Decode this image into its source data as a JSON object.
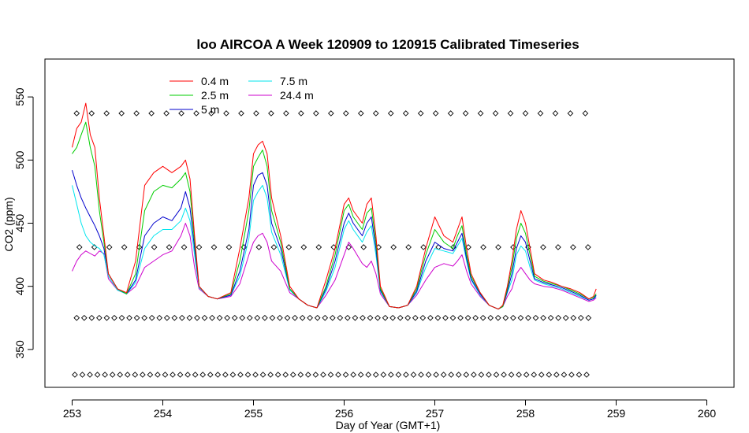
{
  "chart_data": {
    "type": "line",
    "title": "loo AIRCOA A  Week 120909 to 120915  Calibrated Timeseries",
    "xlabel": "Day of Year (GMT+1)",
    "ylabel": "CO2 (ppm)",
    "xlim": [
      252.7,
      260.3
    ],
    "ylim": [
      320,
      580
    ],
    "xticks": [
      253,
      254,
      255,
      256,
      257,
      258,
      259,
      260
    ],
    "yticks": [
      350,
      400,
      450,
      500,
      550
    ],
    "grid": false,
    "legend_position": "top-left",
    "legend": [
      {
        "name": "0.4 m",
        "color": "#ff0000"
      },
      {
        "name": "2.5 m",
        "color": "#00cd00"
      },
      {
        "name": "5 m",
        "color": "#0000cd"
      },
      {
        "name": "7.5 m",
        "color": "#00e5ee"
      },
      {
        "name": "24.4 m",
        "color": "#cd00cd"
      }
    ],
    "series": [
      {
        "name": "0.4 m",
        "color": "#ff0000",
        "x": [
          253.0,
          253.05,
          253.1,
          253.15,
          253.2,
          253.25,
          253.3,
          253.35,
          253.4,
          253.5,
          253.6,
          253.7,
          253.8,
          253.9,
          254.0,
          254.1,
          254.2,
          254.25,
          254.3,
          254.35,
          254.4,
          254.5,
          254.6,
          254.75,
          254.85,
          254.95,
          255.0,
          255.05,
          255.1,
          255.15,
          255.2,
          255.3,
          255.4,
          255.5,
          255.6,
          255.7,
          255.8,
          255.9,
          256.0,
          256.05,
          256.1,
          256.2,
          256.25,
          256.3,
          256.35,
          256.4,
          256.5,
          256.6,
          256.7,
          256.8,
          256.9,
          257.0,
          257.1,
          257.2,
          257.25,
          257.3,
          257.35,
          257.4,
          257.5,
          257.6,
          257.7,
          257.75,
          257.8,
          257.85,
          257.9,
          257.95,
          258.0,
          258.05,
          258.1,
          258.2,
          258.3,
          258.4,
          258.5,
          258.6,
          258.7,
          258.75,
          258.78
        ],
        "y": [
          510,
          525,
          530,
          545,
          520,
          510,
          470,
          440,
          410,
          398,
          395,
          420,
          480,
          490,
          495,
          490,
          495,
          500,
          485,
          440,
          400,
          392,
          390,
          395,
          430,
          470,
          505,
          512,
          515,
          505,
          470,
          440,
          400,
          390,
          385,
          383,
          405,
          430,
          465,
          470,
          460,
          450,
          465,
          470,
          440,
          400,
          384,
          383,
          385,
          400,
          430,
          455,
          440,
          435,
          445,
          455,
          430,
          410,
          395,
          385,
          382,
          385,
          400,
          420,
          445,
          460,
          450,
          430,
          410,
          405,
          403,
          400,
          398,
          395,
          390,
          392,
          398
        ]
      },
      {
        "name": "2.5 m",
        "color": "#00cd00",
        "x": [
          253.0,
          253.05,
          253.1,
          253.15,
          253.2,
          253.25,
          253.3,
          253.35,
          253.4,
          253.5,
          253.6,
          253.7,
          253.8,
          253.9,
          254.0,
          254.1,
          254.2,
          254.25,
          254.3,
          254.35,
          254.4,
          254.5,
          254.6,
          254.75,
          254.85,
          254.95,
          255.0,
          255.05,
          255.1,
          255.15,
          255.2,
          255.3,
          255.4,
          255.5,
          255.6,
          255.7,
          255.8,
          255.9,
          256.0,
          256.05,
          256.1,
          256.2,
          256.25,
          256.3,
          256.35,
          256.4,
          256.5,
          256.6,
          256.7,
          256.8,
          256.9,
          257.0,
          257.1,
          257.2,
          257.25,
          257.3,
          257.35,
          257.4,
          257.5,
          257.6,
          257.7,
          257.75,
          257.8,
          257.85,
          257.9,
          257.95,
          258.0,
          258.05,
          258.1,
          258.2,
          258.3,
          258.4,
          258.5,
          258.6,
          258.7,
          258.75,
          258.78
        ],
        "y": [
          505,
          510,
          520,
          530,
          510,
          495,
          460,
          435,
          410,
          398,
          394,
          410,
          460,
          475,
          480,
          478,
          485,
          490,
          475,
          435,
          400,
          392,
          390,
          394,
          420,
          460,
          495,
          502,
          508,
          495,
          460,
          435,
          398,
          390,
          385,
          383,
          400,
          425,
          460,
          465,
          455,
          445,
          458,
          462,
          435,
          398,
          384,
          383,
          385,
          398,
          425,
          445,
          435,
          430,
          440,
          448,
          425,
          408,
          395,
          385,
          382,
          384,
          398,
          415,
          438,
          450,
          442,
          425,
          408,
          404,
          402,
          400,
          397,
          394,
          390,
          391,
          394
        ]
      },
      {
        "name": "5 m",
        "color": "#0000cd",
        "x": [
          253.0,
          253.05,
          253.1,
          253.15,
          253.2,
          253.25,
          253.3,
          253.35,
          253.4,
          253.5,
          253.6,
          253.7,
          253.8,
          253.9,
          254.0,
          254.1,
          254.2,
          254.25,
          254.3,
          254.35,
          254.4,
          254.5,
          254.6,
          254.75,
          254.85,
          254.95,
          255.0,
          255.05,
          255.1,
          255.15,
          255.2,
          255.3,
          255.4,
          255.5,
          255.6,
          255.7,
          255.8,
          255.9,
          256.0,
          256.05,
          256.1,
          256.2,
          256.25,
          256.3,
          256.35,
          256.4,
          256.5,
          256.6,
          256.7,
          256.8,
          256.9,
          257.0,
          257.1,
          257.2,
          257.25,
          257.3,
          257.35,
          257.4,
          257.5,
          257.6,
          257.7,
          257.75,
          257.8,
          257.85,
          257.9,
          257.95,
          258.0,
          258.05,
          258.1,
          258.2,
          258.3,
          258.4,
          258.5,
          258.6,
          258.7,
          258.75,
          258.78
        ],
        "y": [
          492,
          480,
          470,
          462,
          455,
          448,
          440,
          430,
          410,
          398,
          394,
          405,
          440,
          450,
          455,
          452,
          462,
          475,
          462,
          430,
          400,
          392,
          390,
          393,
          412,
          445,
          480,
          488,
          490,
          480,
          450,
          430,
          398,
          390,
          385,
          383,
          398,
          420,
          450,
          458,
          450,
          440,
          450,
          455,
          430,
          397,
          384,
          383,
          385,
          396,
          420,
          435,
          430,
          428,
          435,
          442,
          422,
          406,
          394,
          385,
          382,
          384,
          396,
          410,
          430,
          440,
          435,
          420,
          406,
          403,
          401,
          399,
          396,
          393,
          389,
          390,
          393
        ]
      },
      {
        "name": "7.5 m",
        "color": "#00e5ee",
        "x": [
          253.0,
          253.05,
          253.1,
          253.15,
          253.2,
          253.25,
          253.3,
          253.35,
          253.4,
          253.5,
          253.6,
          253.7,
          253.8,
          253.9,
          254.0,
          254.1,
          254.2,
          254.25,
          254.3,
          254.35,
          254.4,
          254.5,
          254.6,
          254.75,
          254.85,
          254.95,
          255.0,
          255.05,
          255.1,
          255.15,
          255.2,
          255.3,
          255.4,
          255.5,
          255.6,
          255.7,
          255.8,
          255.9,
          256.0,
          256.05,
          256.1,
          256.2,
          256.25,
          256.3,
          256.35,
          256.4,
          256.5,
          256.6,
          256.7,
          256.8,
          256.9,
          257.0,
          257.1,
          257.2,
          257.25,
          257.3,
          257.35,
          257.4,
          257.5,
          257.6,
          257.7,
          257.75,
          257.8,
          257.85,
          257.9,
          257.95,
          258.0,
          258.05,
          258.1,
          258.2,
          258.3,
          258.4,
          258.5,
          258.6,
          258.7,
          258.75,
          258.78
        ],
        "y": [
          480,
          465,
          450,
          440,
          435,
          432,
          430,
          425,
          408,
          397,
          394,
          403,
          430,
          440,
          445,
          445,
          452,
          462,
          452,
          425,
          399,
          392,
          390,
          393,
          408,
          438,
          468,
          475,
          480,
          470,
          443,
          425,
          397,
          390,
          385,
          383,
          396,
          415,
          445,
          452,
          445,
          435,
          443,
          448,
          425,
          396,
          384,
          383,
          385,
          395,
          415,
          430,
          428,
          426,
          432,
          438,
          420,
          405,
          393,
          385,
          382,
          384,
          395,
          405,
          425,
          432,
          428,
          415,
          405,
          402,
          400,
          398,
          395,
          392,
          389,
          390,
          392
        ]
      },
      {
        "name": "24.4 m",
        "color": "#cd00cd",
        "x": [
          253.0,
          253.05,
          253.1,
          253.15,
          253.2,
          253.25,
          253.3,
          253.35,
          253.4,
          253.5,
          253.6,
          253.7,
          253.8,
          253.9,
          254.0,
          254.1,
          254.2,
          254.25,
          254.3,
          254.35,
          254.4,
          254.5,
          254.6,
          254.75,
          254.85,
          254.95,
          255.0,
          255.05,
          255.1,
          255.15,
          255.2,
          255.3,
          255.4,
          255.5,
          255.6,
          255.7,
          255.8,
          255.9,
          256.0,
          256.05,
          256.1,
          256.2,
          256.25,
          256.3,
          256.35,
          256.4,
          256.5,
          256.6,
          256.7,
          256.8,
          256.9,
          257.0,
          257.1,
          257.2,
          257.25,
          257.3,
          257.35,
          257.4,
          257.5,
          257.6,
          257.7,
          257.75,
          257.8,
          257.85,
          257.9,
          257.95,
          258.0,
          258.05,
          258.1,
          258.2,
          258.3,
          258.4,
          258.5,
          258.6,
          258.7,
          258.75,
          258.78
        ],
        "y": [
          412,
          420,
          425,
          428,
          426,
          424,
          428,
          426,
          406,
          397,
          394,
          400,
          415,
          420,
          425,
          428,
          440,
          450,
          440,
          415,
          398,
          392,
          390,
          392,
          402,
          425,
          435,
          440,
          442,
          435,
          420,
          412,
          395,
          390,
          385,
          383,
          393,
          405,
          425,
          435,
          430,
          418,
          415,
          420,
          410,
          394,
          384,
          383,
          385,
          393,
          405,
          415,
          418,
          416,
          420,
          425,
          412,
          402,
          392,
          385,
          382,
          384,
          392,
          398,
          410,
          415,
          410,
          405,
          402,
          400,
          399,
          397,
          394,
          391,
          388,
          389,
          391
        ]
      }
    ],
    "marker_rows": [
      {
        "y": 537,
        "x_start": 253.05,
        "x_end": 258.78,
        "x_step": 0.165
      },
      {
        "y": 431,
        "x_start": 253.08,
        "x_end": 258.78,
        "x_step": 0.165
      },
      {
        "y": 375,
        "x_start": 253.05,
        "x_end": 258.73,
        "x_step": 0.083
      },
      {
        "y": 330,
        "x_start": 253.03,
        "x_end": 258.7,
        "x_step": 0.083
      }
    ]
  }
}
